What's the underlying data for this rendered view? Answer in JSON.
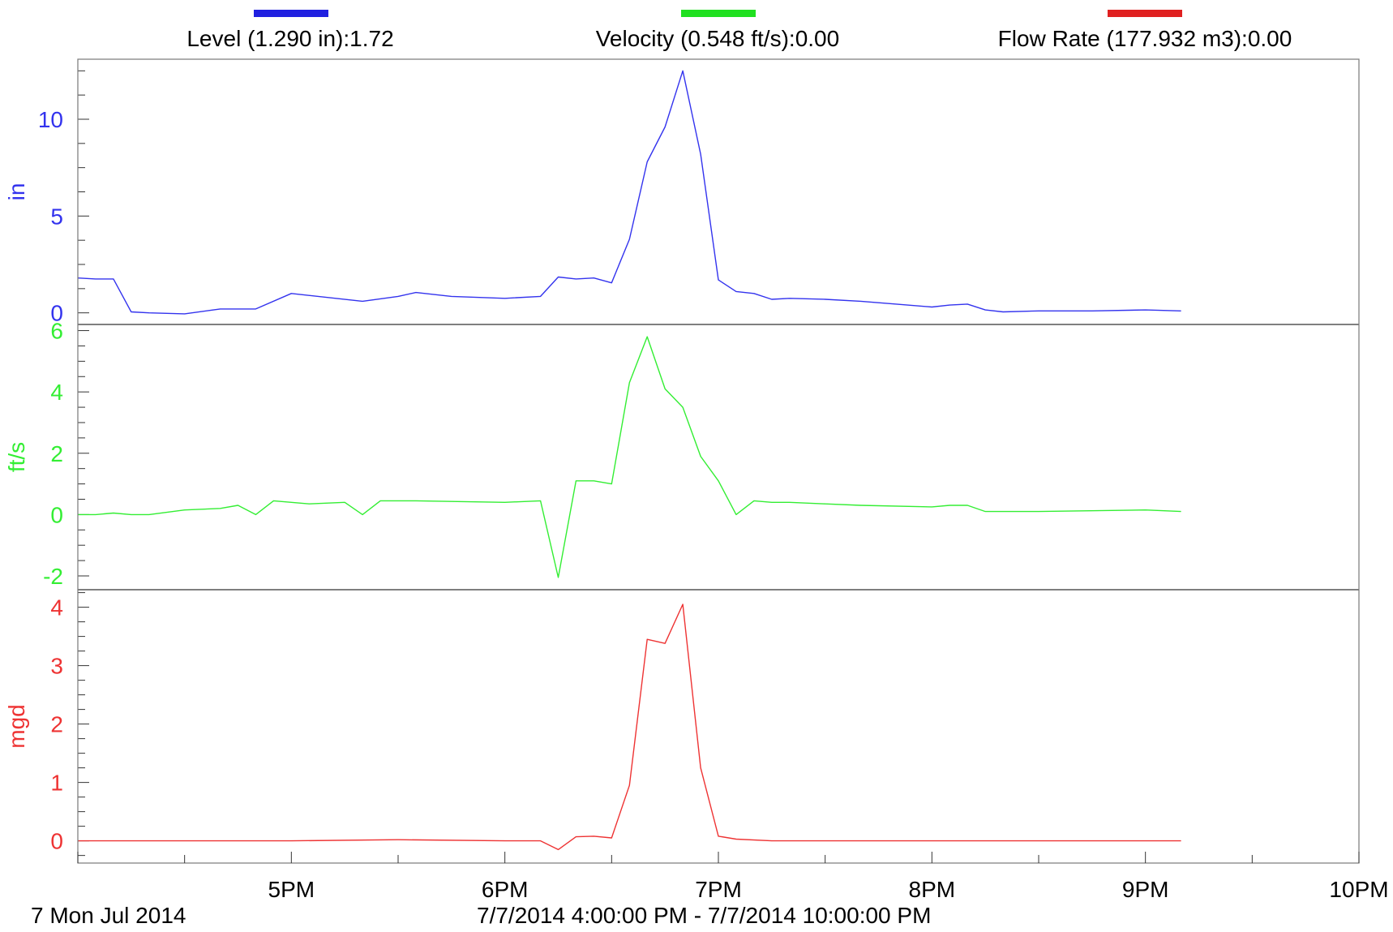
{
  "legend": [
    {
      "label": "Level (1.290 in):1.72",
      "color": "#2020e0"
    },
    {
      "label": "Velocity (0.548 ft/s):0.00",
      "color": "#20e020"
    },
    {
      "label": "Flow Rate (177.932 m3):0.00",
      "color": "#e02020"
    }
  ],
  "footer": {
    "date_label": "7 Mon Jul 2014",
    "range_label": "7/7/2014 4:00:00 PM - 7/7/2014 10:00:00 PM"
  },
  "chart_data": {
    "type": "line",
    "x_axis": {
      "start": "7/7/2014 4:00:00 PM",
      "end": "7/7/2014 10:00:00 PM",
      "tick_labels": [
        "5PM",
        "6PM",
        "7PM",
        "8PM",
        "9PM",
        "10PM"
      ]
    },
    "panels": [
      {
        "ylabel": "in",
        "color": "#3333ee",
        "ylim": [
          -0.6,
          13.1
        ],
        "yticks": [
          0,
          5,
          10
        ],
        "series": {
          "name": "Level",
          "x": [
            "7/7/2014 4:00:00 PM",
            "7/7/2014 4:05:00 PM",
            "7/7/2014 4:10:00 PM",
            "7/7/2014 4:15:00 PM",
            "7/7/2014 4:20:00 PM",
            "7/7/2014 4:30:00 PM",
            "7/7/2014 4:40:00 PM",
            "7/7/2014 4:50:00 PM",
            "7/7/2014 5:00:00 PM",
            "7/7/2014 5:20:00 PM",
            "7/7/2014 5:30:00 PM",
            "7/7/2014 5:35:00 PM",
            "7/7/2014 5:45:00 PM",
            "7/7/2014 6:00:00 PM",
            "7/7/2014 6:10:00 PM",
            "7/7/2014 6:15:00 PM",
            "7/7/2014 6:20:00 PM",
            "7/7/2014 6:25:00 PM",
            "7/7/2014 6:30:00 PM",
            "7/7/2014 6:35:00 PM",
            "7/7/2014 6:40:00 PM",
            "7/7/2014 6:45:00 PM",
            "7/7/2014 6:50:00 PM",
            "7/7/2014 6:55:00 PM",
            "7/7/2014 7:00:00 PM",
            "7/7/2014 7:05:00 PM",
            "7/7/2014 7:10:00 PM",
            "7/7/2014 7:15:00 PM",
            "7/7/2014 7:20:00 PM",
            "7/7/2014 7:30:00 PM",
            "7/7/2014 7:40:00 PM",
            "7/7/2014 7:50:00 PM",
            "7/7/2014 8:00:00 PM",
            "7/7/2014 8:05:00 PM",
            "7/7/2014 8:10:00 PM",
            "7/7/2014 8:15:00 PM",
            "7/7/2014 8:20:00 PM",
            "7/7/2014 8:30:00 PM",
            "7/7/2014 8:45:00 PM",
            "7/7/2014 9:00:00 PM",
            "7/7/2014 9:10:00 PM"
          ],
          "y": [
            1.8,
            1.75,
            1.75,
            0.05,
            0.0,
            -0.05,
            0.2,
            0.2,
            1.0,
            0.6,
            0.85,
            1.05,
            0.85,
            0.75,
            0.85,
            1.85,
            1.75,
            1.8,
            1.55,
            3.8,
            7.8,
            9.6,
            12.5,
            8.2,
            1.7,
            1.1,
            1.0,
            0.7,
            0.75,
            0.7,
            0.6,
            0.45,
            0.3,
            0.4,
            0.45,
            0.15,
            0.05,
            0.1,
            0.1,
            0.15,
            0.1
          ]
        }
      },
      {
        "ylabel": "ft/s",
        "color": "#33ee33",
        "ylim": [
          -2.45,
          6.2
        ],
        "yticks": [
          -2,
          0,
          2,
          4,
          6
        ],
        "series": {
          "name": "Velocity",
          "x": [
            "7/7/2014 4:00:00 PM",
            "7/7/2014 4:05:00 PM",
            "7/7/2014 4:10:00 PM",
            "7/7/2014 4:15:00 PM",
            "7/7/2014 4:20:00 PM",
            "7/7/2014 4:30:00 PM",
            "7/7/2014 4:40:00 PM",
            "7/7/2014 4:45:00 PM",
            "7/7/2014 4:50:00 PM",
            "7/7/2014 4:55:00 PM",
            "7/7/2014 5:00:00 PM",
            "7/7/2014 5:05:00 PM",
            "7/7/2014 5:15:00 PM",
            "7/7/2014 5:20:00 PM",
            "7/7/2014 5:25:00 PM",
            "7/7/2014 5:30:00 PM",
            "7/7/2014 5:35:00 PM",
            "7/7/2014 6:00:00 PM",
            "7/7/2014 6:10:00 PM",
            "7/7/2014 6:15:00 PM",
            "7/7/2014 6:20:00 PM",
            "7/7/2014 6:25:00 PM",
            "7/7/2014 6:30:00 PM",
            "7/7/2014 6:35:00 PM",
            "7/7/2014 6:40:00 PM",
            "7/7/2014 6:45:00 PM",
            "7/7/2014 6:50:00 PM",
            "7/7/2014 6:55:00 PM",
            "7/7/2014 7:00:00 PM",
            "7/7/2014 7:05:00 PM",
            "7/7/2014 7:10:00 PM",
            "7/7/2014 7:15:00 PM",
            "7/7/2014 7:20:00 PM",
            "7/7/2014 7:30:00 PM",
            "7/7/2014 7:40:00 PM",
            "7/7/2014 8:00:00 PM",
            "7/7/2014 8:05:00 PM",
            "7/7/2014 8:10:00 PM",
            "7/7/2014 8:15:00 PM",
            "7/7/2014 8:20:00 PM",
            "7/7/2014 8:30:00 PM",
            "7/7/2014 9:00:00 PM",
            "7/7/2014 9:10:00 PM"
          ],
          "y": [
            0.0,
            0.0,
            0.05,
            0.0,
            0.0,
            0.15,
            0.2,
            0.3,
            0.0,
            0.45,
            0.4,
            0.35,
            0.4,
            0.0,
            0.45,
            0.45,
            0.45,
            0.4,
            0.45,
            -2.05,
            1.1,
            1.1,
            1.0,
            4.3,
            5.8,
            4.1,
            3.5,
            1.9,
            1.1,
            0.0,
            0.45,
            0.4,
            0.4,
            0.35,
            0.3,
            0.25,
            0.3,
            0.3,
            0.1,
            0.1,
            0.1,
            0.15,
            0.1
          ]
        }
      },
      {
        "ylabel": "mgd",
        "color": "#ee3333",
        "ylim": [
          -0.38,
          4.3
        ],
        "yticks": [
          0,
          1,
          2,
          3,
          4
        ],
        "series": {
          "name": "Flow Rate",
          "x": [
            "7/7/2014 4:00:00 PM",
            "7/7/2014 5:00:00 PM",
            "7/7/2014 5:30:00 PM",
            "7/7/2014 6:00:00 PM",
            "7/7/2014 6:10:00 PM",
            "7/7/2014 6:15:00 PM",
            "7/7/2014 6:20:00 PM",
            "7/7/2014 6:25:00 PM",
            "7/7/2014 6:30:00 PM",
            "7/7/2014 6:35:00 PM",
            "7/7/2014 6:40:00 PM",
            "7/7/2014 6:45:00 PM",
            "7/7/2014 6:50:00 PM",
            "7/7/2014 6:55:00 PM",
            "7/7/2014 7:00:00 PM",
            "7/7/2014 7:05:00 PM",
            "7/7/2014 7:15:00 PM",
            "7/7/2014 7:30:00 PM",
            "7/7/2014 9:10:00 PM"
          ],
          "y": [
            0.0,
            0.0,
            0.02,
            0.0,
            0.0,
            -0.15,
            0.07,
            0.08,
            0.05,
            0.95,
            3.45,
            3.38,
            4.05,
            1.25,
            0.08,
            0.03,
            0.0,
            0.0,
            0.0
          ]
        }
      }
    ]
  }
}
